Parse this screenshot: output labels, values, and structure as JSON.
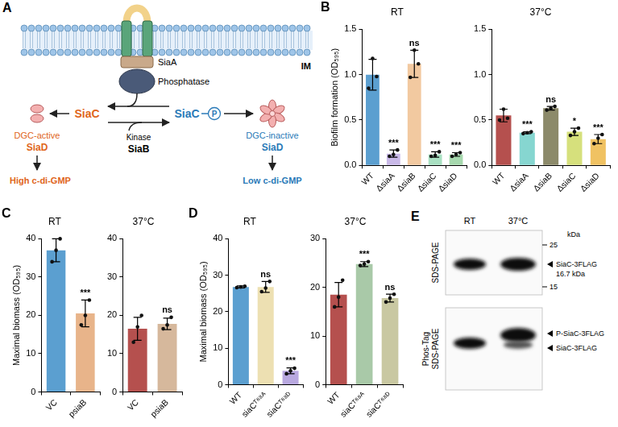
{
  "diagram": {
    "panel": "A",
    "labels": {
      "receptor": "SiaA",
      "membrane": "IM",
      "phosphatase": "Phosphatase",
      "siac": "SiaC",
      "siac_p": "SiaC",
      "phospho": "P",
      "kinase": "Kinase",
      "kinase_protein": "SiaB",
      "active": "DGC-active",
      "active_protein": "SiaD",
      "inactive": "DGC-inactive",
      "inactive_protein": "SiaD",
      "high": "High c-di-GMP",
      "low": "Low c-di-GMP"
    }
  },
  "chart_data": [
    {
      "panel": "B",
      "type": "bar",
      "title": "RT",
      "ylabel": "Biofilm formation (OD₅₉₅)",
      "categories": [
        "WT",
        "ΔsiaA",
        "ΔsiaB",
        "ΔsiaC",
        "ΔsiaD"
      ],
      "values": [
        1.0,
        0.13,
        1.12,
        0.12,
        0.12
      ],
      "error": [
        0.17,
        0.04,
        0.15,
        0.03,
        0.02
      ],
      "points": [
        [
          0.85,
          1.18,
          0.98
        ],
        [
          0.1,
          0.12,
          0.17
        ],
        [
          0.97,
          1.27,
          1.12
        ],
        [
          0.1,
          0.11,
          0.15
        ],
        [
          0.1,
          0.12,
          0.14
        ]
      ],
      "annotations": [
        null,
        "***",
        "ns",
        "***",
        "***"
      ],
      "colors": [
        "#5b9fd0",
        "#c9b9e8",
        "#f2c9a0",
        "#a9e0c2",
        "#a6d8ae"
      ],
      "ylim": [
        0,
        1.5
      ],
      "yticks": [
        {
          "value": 0,
          "label": "0.0"
        },
        {
          "value": 0.5,
          "label": "0.5"
        },
        {
          "value": 1,
          "label": "1.0"
        },
        {
          "value": 1.5,
          "label": "1.5"
        }
      ],
      "grid": false
    },
    {
      "type": "bar",
      "title": "37°C",
      "categories": [
        "WT",
        "ΔsiaA",
        "ΔsiaB",
        "ΔsiaC",
        "ΔsiaD"
      ],
      "values": [
        0.55,
        0.36,
        0.63,
        0.37,
        0.29
      ],
      "error": [
        0.07,
        0.01,
        0.02,
        0.04,
        0.05
      ],
      "points": [
        [
          0.5,
          0.62,
          0.52
        ],
        [
          0.35,
          0.36,
          0.37
        ],
        [
          0.61,
          0.63,
          0.65
        ],
        [
          0.33,
          0.37,
          0.41
        ],
        [
          0.24,
          0.3,
          0.34
        ]
      ],
      "annotations": [
        null,
        "***",
        "ns",
        "*",
        "***"
      ],
      "colors": [
        "#b5504e",
        "#86d6d0",
        "#8c8a6a",
        "#d6e07c",
        "#f0c262"
      ],
      "ylim": [
        0,
        1.5
      ],
      "yticks": [
        {
          "value": 0,
          "label": "0.0"
        },
        {
          "value": 0.5,
          "label": "0.5"
        },
        {
          "value": 1,
          "label": "1.0"
        },
        {
          "value": 1.5,
          "label": "1.5"
        }
      ],
      "grid": false
    },
    {
      "panel": "C",
      "type": "bar",
      "title": "RT",
      "ylabel": "Maximal biomass (OD₅₉₅)",
      "categories": [
        "VC",
        "psiaB"
      ],
      "values": [
        37,
        20.5
      ],
      "error": [
        3,
        3.5
      ],
      "points": [
        [
          34,
          37,
          40
        ],
        [
          17.5,
          20,
          24
        ]
      ],
      "annotations": [
        null,
        "***"
      ],
      "colors": [
        "#5b9fd0",
        "#e8b48a"
      ],
      "ylim": [
        0,
        40
      ],
      "yticks": [
        0,
        10,
        20,
        30,
        40
      ],
      "grid": false
    },
    {
      "type": "bar",
      "title": "37°C",
      "categories": [
        "VC",
        "psiaB"
      ],
      "values": [
        16.5,
        17.8
      ],
      "error": [
        3,
        1.5
      ],
      "points": [
        [
          13,
          17,
          20
        ],
        [
          16.5,
          17.5,
          19.5
        ]
      ],
      "annotations": [
        null,
        "ns"
      ],
      "colors": [
        "#b5504e",
        "#d6b89c"
      ],
      "ylim": [
        0,
        40
      ],
      "yticks": [
        0,
        10,
        20,
        30,
        40
      ],
      "grid": false
    },
    {
      "panel": "D",
      "type": "bar",
      "title": "RT",
      "ylabel": "Maximal biomass (OD₅₉₅)",
      "categories": [
        "WT",
        "siaCᵀ⁶⁸ᴬ",
        "siaCᵀ⁶⁸ᴰ"
      ],
      "values": [
        26.8,
        26.8,
        3.8
      ],
      "error": [
        0.3,
        1.5,
        0.8
      ],
      "points": [
        [
          26.6,
          26.8,
          27
        ],
        [
          25.5,
          26.5,
          28.3
        ],
        [
          3,
          3.8,
          4.5
        ]
      ],
      "annotations": [
        null,
        "ns",
        "***"
      ],
      "colors": [
        "#5b9fd0",
        "#ede0b2",
        "#b9a9e0"
      ],
      "ylim": [
        0,
        40
      ],
      "yticks": [
        0,
        10,
        20,
        30,
        40
      ],
      "grid": false
    },
    {
      "type": "bar",
      "title": "37°C",
      "categories": [
        "WT",
        "siaCᵀ⁶⁸ᴬ",
        "siaCᵀ⁶⁸ᴰ"
      ],
      "values": [
        18.5,
        24.8,
        17.8
      ],
      "error": [
        2.5,
        0.5,
        0.8
      ],
      "points": [
        [
          16,
          18,
          21.5
        ],
        [
          24.5,
          24.8,
          25.3
        ],
        [
          17,
          17.8,
          18.6
        ]
      ],
      "annotations": [
        null,
        "***",
        "ns"
      ],
      "colors": [
        "#b5504e",
        "#a9c9a8",
        "#c9c8a2"
      ],
      "ylim": [
        0,
        30
      ],
      "yticks": [
        0,
        10,
        20,
        30
      ],
      "grid": false
    }
  ],
  "blot": {
    "panel": "E",
    "lanes": [
      "RT",
      "37°C"
    ],
    "marker_unit": "kDa",
    "markers": [
      25,
      15
    ],
    "gels": [
      {
        "name": "SDS-PAGE",
        "bands": [
          {
            "label": "SiaC-3FLAG",
            "size": "16.7 kDa"
          }
        ]
      },
      {
        "name": "Phos-Tag SDS-PAGE",
        "bands": [
          {
            "label": "P-SiaC-3FLAG"
          },
          {
            "label": "SiaC-3FLAG"
          }
        ]
      }
    ]
  }
}
